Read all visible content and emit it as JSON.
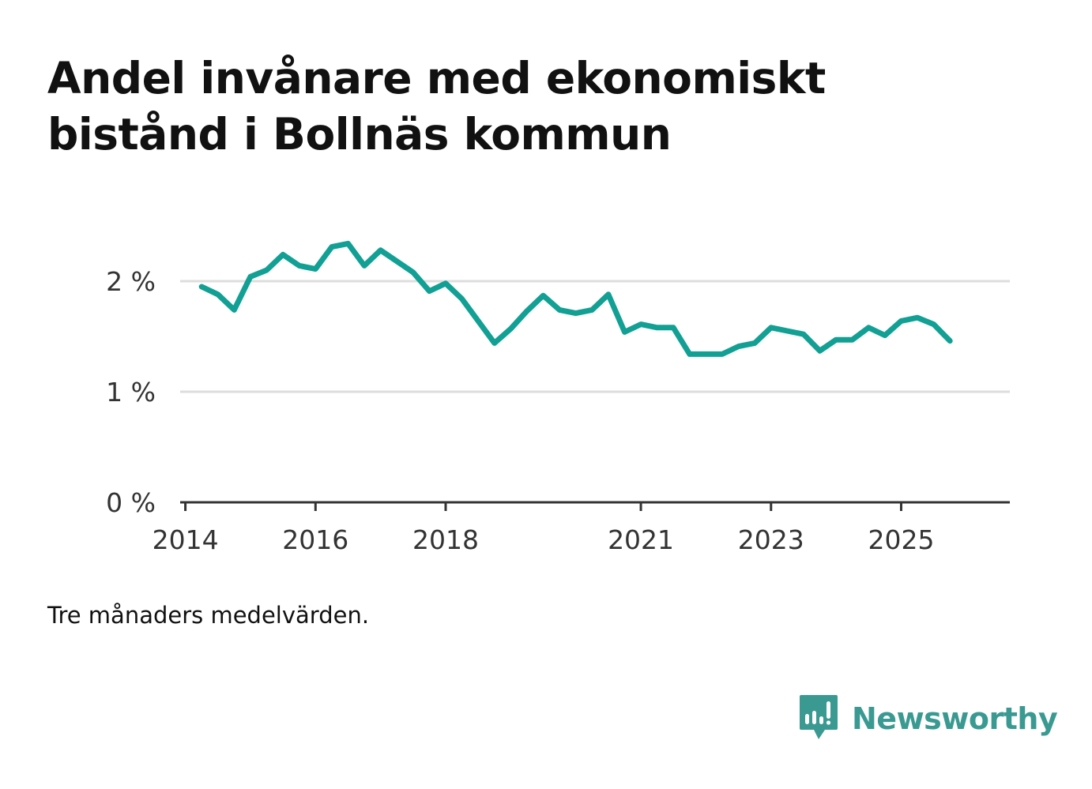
{
  "title": "Andel invånare med ekonomiskt bistånd i Bollnäs kommun",
  "note": "Tre månaders medelvärden.",
  "brand": {
    "name": "Newsworthy",
    "icon": "newsworthy-logo-icon",
    "color": "#3a9a92"
  },
  "chart_data": {
    "type": "line",
    "title": "Andel invånare med ekonomiskt bistånd i Bollnäs kommun",
    "xlabel": "",
    "ylabel": "",
    "ylim": [
      0,
      2.4
    ],
    "xlim": [
      2013.92,
      2026.67
    ],
    "grid": true,
    "line_color": "#12a094",
    "y_ticks": [
      {
        "value": 0,
        "label": "0 %"
      },
      {
        "value": 1,
        "label": "1 %"
      },
      {
        "value": 2,
        "label": "2 %"
      }
    ],
    "x_ticks": [
      {
        "value": 2014,
        "label": "2014"
      },
      {
        "value": 2016,
        "label": "2016"
      },
      {
        "value": 2018,
        "label": "2018"
      },
      {
        "value": 2021,
        "label": "2021"
      },
      {
        "value": 2023,
        "label": "2023"
      },
      {
        "value": 2025,
        "label": "2025"
      }
    ],
    "series": [
      {
        "name": "Andel invånare med ekonomiskt bistånd",
        "x": [
          2014.25,
          2014.5,
          2014.75,
          2015.0,
          2015.25,
          2015.5,
          2015.75,
          2016.0,
          2016.25,
          2016.5,
          2016.75,
          2017.0,
          2017.25,
          2017.5,
          2017.75,
          2018.0,
          2018.25,
          2018.5,
          2018.75,
          2019.0,
          2019.25,
          2019.5,
          2019.75,
          2020.0,
          2020.25,
          2020.5,
          2020.75,
          2021.0,
          2021.25,
          2021.5,
          2021.75,
          2022.0,
          2022.25,
          2022.5,
          2022.75,
          2023.0,
          2023.25,
          2023.5,
          2023.75,
          2024.0,
          2024.25,
          2024.5,
          2024.75,
          2025.0,
          2025.25,
          2025.5,
          2025.75
        ],
        "values": [
          1.95,
          1.88,
          1.74,
          2.04,
          2.1,
          2.24,
          2.14,
          2.11,
          2.31,
          2.34,
          2.14,
          2.28,
          2.18,
          2.08,
          1.91,
          1.98,
          1.84,
          1.64,
          1.44,
          1.57,
          1.73,
          1.87,
          1.74,
          1.71,
          1.74,
          1.88,
          1.54,
          1.61,
          1.58,
          1.58,
          1.34,
          1.34,
          1.34,
          1.41,
          1.44,
          1.58,
          1.55,
          1.52,
          1.37,
          1.47,
          1.47,
          1.58,
          1.51,
          1.64,
          1.67,
          1.61,
          1.46
        ]
      }
    ]
  }
}
